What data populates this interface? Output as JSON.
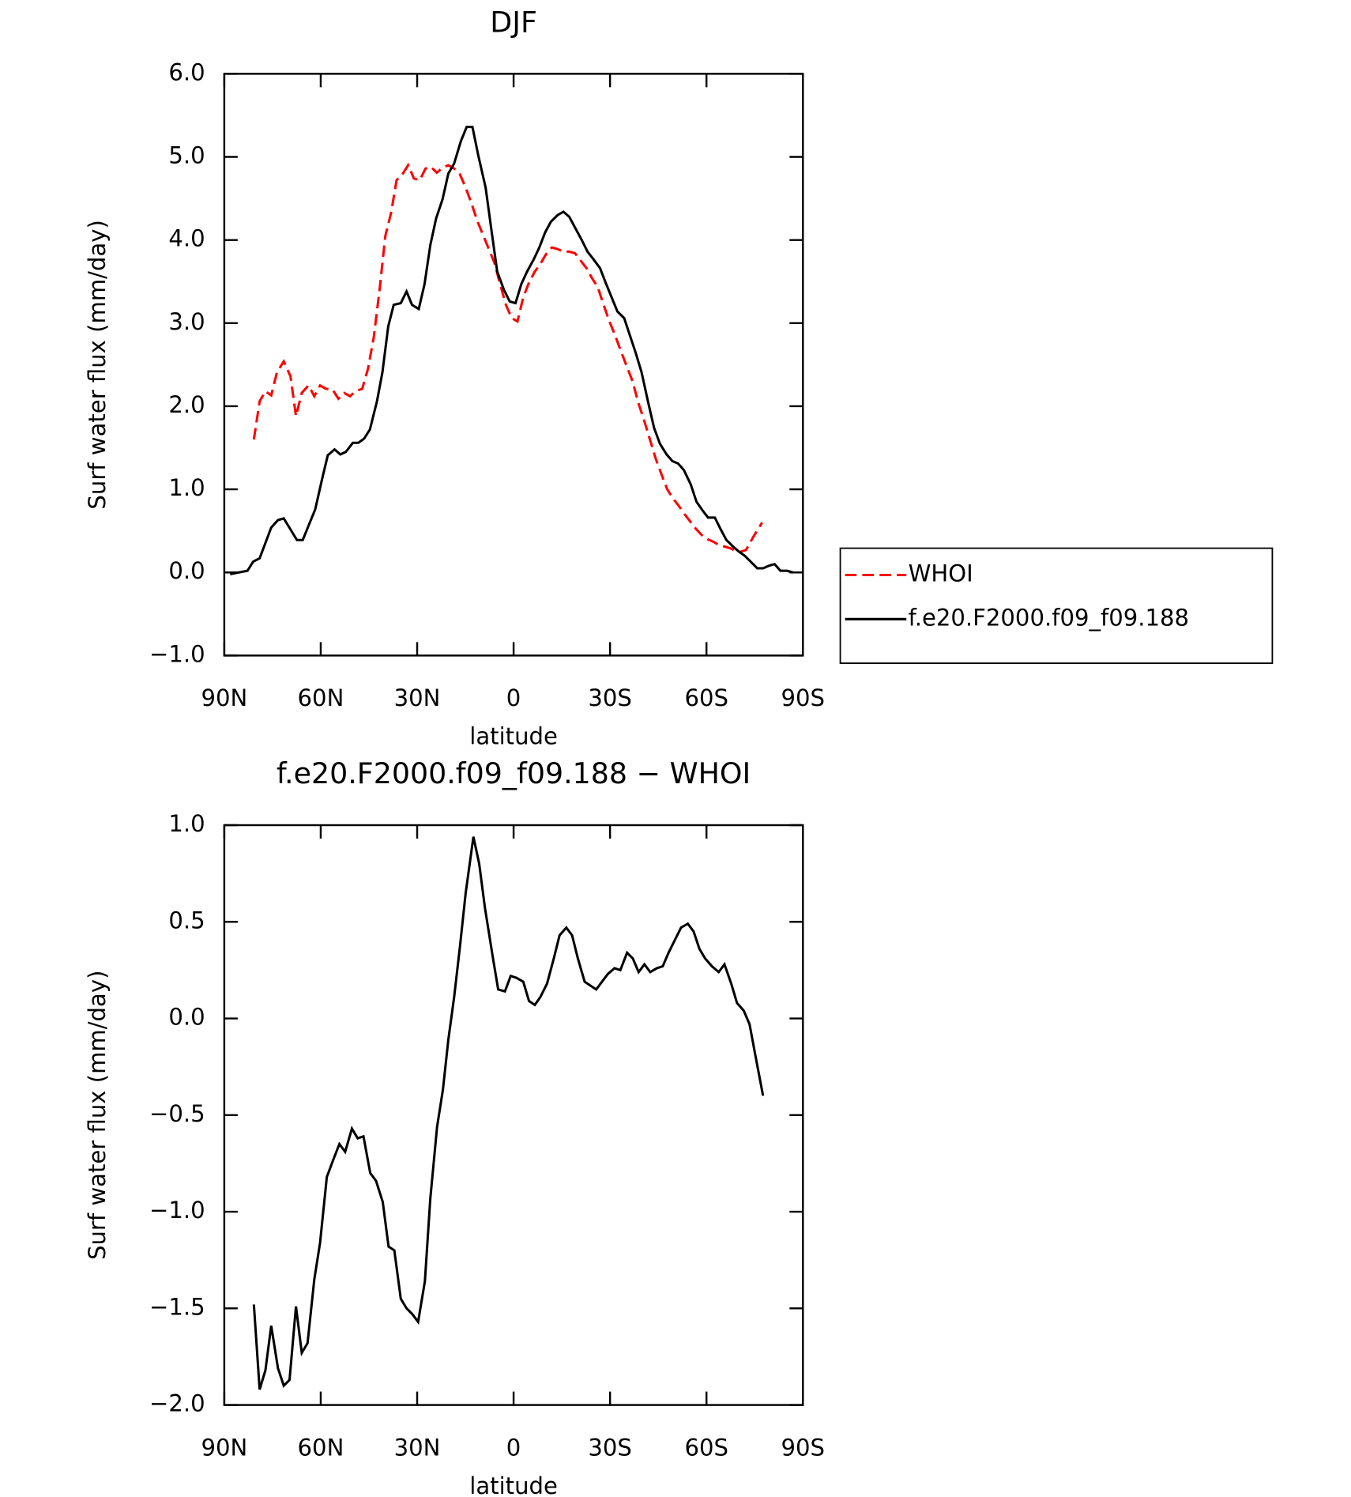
{
  "chart_data": [
    {
      "type": "line",
      "title": "DJF",
      "xlabel": "latitude",
      "ylabel": "Surf water flux (mm/day)",
      "xlim": [
        90,
        -90
      ],
      "xticks": [
        {
          "value": 90,
          "label": "90N"
        },
        {
          "value": 60,
          "label": "60N"
        },
        {
          "value": 30,
          "label": "30N"
        },
        0,
        {
          "value": -30,
          "label": "30S"
        },
        {
          "value": -60,
          "label": "60S"
        },
        {
          "value": -90,
          "label": "90S"
        }
      ],
      "ylim": [
        -1,
        6
      ],
      "yticks": [
        {
          "value": -1,
          "label": "−1.0"
        },
        {
          "value": 0,
          "label": "0.0"
        },
        {
          "value": 1,
          "label": "1.0"
        },
        {
          "value": 2,
          "label": "2.0"
        },
        {
          "value": 3,
          "label": "3.0"
        },
        {
          "value": 4,
          "label": "4.0"
        },
        {
          "value": 5,
          "label": "5.0"
        },
        {
          "value": 6,
          "label": "6.0"
        }
      ],
      "legend": "right",
      "series": [
        {
          "name": "WHOI",
          "color": "#ff0000",
          "style": "dashed",
          "x": [
            80.8,
            79,
            77.2,
            75.4,
            73.6,
            71.5,
            69.4,
            67.7,
            65.9,
            63.8,
            62,
            60.2,
            58.4,
            56.3,
            54.5,
            52.7,
            50.9,
            49.2,
            47.1,
            45.3,
            43.5,
            41.7,
            39.9,
            38.1,
            36.4,
            34.6,
            32.8,
            31,
            29.2,
            27.4,
            25.7,
            23.9,
            22.1,
            20.3,
            18.5,
            16.7,
            14.9,
            13.1,
            11.3,
            9.5,
            7.7,
            6,
            4.2,
            2.4,
            0.6,
            -1.2,
            -3,
            -4.8,
            -6.6,
            -8.3,
            -10.1,
            -11.9,
            -13.7,
            -15.5,
            -17.3,
            -19.1,
            -20.9,
            -22.7,
            -24.4,
            -26.2,
            -28,
            -29.8,
            -31.6,
            -33.4,
            -35.2,
            -37,
            -38.8,
            -40.6,
            -42.4,
            -44.2,
            -46,
            -47.8,
            -49.6,
            -51.4,
            -53.2,
            -55,
            -56.8,
            -58.5,
            -60.3,
            -62.1,
            -63.9,
            -65.7,
            -67.5,
            -69.9,
            -72.3,
            -74.6,
            -77.3
          ],
          "values": [
            1.6,
            2.06,
            2.18,
            2.13,
            2.41,
            2.54,
            2.36,
            1.88,
            2.16,
            2.25,
            2.12,
            2.25,
            2.21,
            2.2,
            2.09,
            2.16,
            2.12,
            2.18,
            2.21,
            2.45,
            2.83,
            3.4,
            4.05,
            4.33,
            4.72,
            4.79,
            4.9,
            4.74,
            4.72,
            4.86,
            4.88,
            4.81,
            4.87,
            4.9,
            4.86,
            4.79,
            4.63,
            4.44,
            4.23,
            4.06,
            3.89,
            3.73,
            3.47,
            3.22,
            3.06,
            3.02,
            3.31,
            3.49,
            3.62,
            3.71,
            3.83,
            3.91,
            3.89,
            3.86,
            3.86,
            3.84,
            3.75,
            3.66,
            3.54,
            3.43,
            3.22,
            3.02,
            2.85,
            2.66,
            2.48,
            2.3,
            2.04,
            1.83,
            1.6,
            1.37,
            1.18,
            1.0,
            0.89,
            0.8,
            0.7,
            0.61,
            0.52,
            0.45,
            0.4,
            0.37,
            0.33,
            0.31,
            0.29,
            0.24,
            0.27,
            0.43,
            0.6
          ]
        },
        {
          "name": "f.e20.F2000.f09_f09.188",
          "color": "#000000",
          "style": "solid",
          "x": [
            88.2,
            82.8,
            81,
            79,
            75.4,
            73.3,
            71.5,
            67.4,
            65.6,
            61.7,
            59.6,
            57.8,
            55.7,
            53.9,
            52.2,
            50,
            48.3,
            46.5,
            44.7,
            42.5,
            40.8,
            39,
            37.3,
            35.1,
            33.3,
            31.6,
            29.5,
            27.7,
            25.9,
            24.1,
            22.1,
            20.3,
            18.5,
            16.4,
            14.6,
            12.8,
            11,
            8.7,
            6.9,
            5.1,
            3,
            1.2,
            -0.6,
            -2.4,
            -4.2,
            -6.3,
            -8,
            -9.8,
            -11.6,
            -13.7,
            -15.5,
            -17.3,
            -19.1,
            -21.2,
            -23,
            -24.8,
            -26.9,
            -28.7,
            -30.5,
            -32.3,
            -34.4,
            -36.2,
            -38,
            -39.8,
            -41.9,
            -43.7,
            -45.5,
            -47.6,
            -49.4,
            -51.2,
            -53,
            -55.1,
            -56.9,
            -58.7,
            -60.5,
            -62.6,
            -64.4,
            -66.2,
            -68.3,
            -70.1,
            -71.9,
            -74,
            -75.8,
            -77.6,
            -79.4,
            -81.2,
            -83,
            -85.1,
            -86.9
          ],
          "values": [
            -0.02,
            0.02,
            0.13,
            0.17,
            0.54,
            0.63,
            0.65,
            0.39,
            0.39,
            0.76,
            1.12,
            1.41,
            1.48,
            1.42,
            1.45,
            1.56,
            1.56,
            1.61,
            1.72,
            2.06,
            2.41,
            2.96,
            3.22,
            3.24,
            3.38,
            3.22,
            3.17,
            3.47,
            3.94,
            4.26,
            4.49,
            4.8,
            4.92,
            5.19,
            5.36,
            5.36,
            5.02,
            4.63,
            4.12,
            3.62,
            3.4,
            3.26,
            3.24,
            3.47,
            3.62,
            3.77,
            3.91,
            4.09,
            4.22,
            4.3,
            4.34,
            4.28,
            4.15,
            4.0,
            3.86,
            3.77,
            3.66,
            3.48,
            3.31,
            3.14,
            3.06,
            2.85,
            2.64,
            2.41,
            2.04,
            1.74,
            1.55,
            1.42,
            1.34,
            1.31,
            1.23,
            1.06,
            0.85,
            0.75,
            0.66,
            0.66,
            0.52,
            0.39,
            0.31,
            0.25,
            0.2,
            0.12,
            0.05,
            0.05,
            0.08,
            0.1,
            0.02,
            0.02,
            0.0
          ]
        }
      ]
    },
    {
      "type": "line",
      "title": "f.e20.F2000.f09_f09.188 − WHOI",
      "xlabel": "latitude",
      "ylabel": "Surf water flux (mm/day)",
      "xlim": [
        90,
        -90
      ],
      "xticks": [
        {
          "value": 90,
          "label": "90N"
        },
        {
          "value": 60,
          "label": "60N"
        },
        {
          "value": 30,
          "label": "30N"
        },
        0,
        {
          "value": -30,
          "label": "30S"
        },
        {
          "value": -60,
          "label": "60S"
        },
        {
          "value": -90,
          "label": "90S"
        }
      ],
      "ylim": [
        -2,
        1
      ],
      "yticks": [
        {
          "value": -2,
          "label": "−2.0"
        },
        {
          "value": -1.5,
          "label": "−1.5"
        },
        {
          "value": -1,
          "label": "−1.0"
        },
        {
          "value": -0.5,
          "label": "−0.5"
        },
        {
          "value": 0,
          "label": "0.0"
        },
        0.5,
        {
          "value": 1,
          "label": "1.0"
        }
      ],
      "series": [
        {
          "color": "#000000",
          "style": "solid",
          "x": [
            80.8,
            79,
            77.2,
            75.4,
            73.3,
            71.5,
            69.7,
            67.7,
            65.9,
            64.1,
            62,
            60.2,
            58.1,
            56.3,
            54.2,
            52.4,
            50.3,
            48.5,
            46.7,
            44.6,
            42.8,
            40.7,
            38.9,
            37.1,
            35.1,
            33.3,
            31.5,
            29.7,
            27.6,
            25.9,
            23.8,
            22,
            20.3,
            18.5,
            16.7,
            14.9,
            12.5,
            10.7,
            8.9,
            6.5,
            4.8,
            2.7,
            0.9,
            -0.9,
            -3,
            -4.8,
            -6.6,
            -8.3,
            -10.4,
            -12.5,
            -14.3,
            -16.4,
            -18.2,
            -20,
            -22.1,
            -23.9,
            -25.7,
            -27.5,
            -29.3,
            -31.4,
            -33.2,
            -35.3,
            -37.1,
            -38.9,
            -40.7,
            -42.5,
            -44.6,
            -46.4,
            -48.2,
            -50,
            -52.1,
            -54.2,
            -56,
            -57.8,
            -59.6,
            -61.7,
            -63.8,
            -65.6,
            -67.7,
            -69.5,
            -71.6,
            -73.4,
            -75.2,
            -77.6
          ],
          "values": [
            -1.48,
            -1.92,
            -1.82,
            -1.59,
            -1.81,
            -1.9,
            -1.87,
            -1.49,
            -1.73,
            -1.68,
            -1.35,
            -1.16,
            -0.82,
            -0.74,
            -0.65,
            -0.69,
            -0.57,
            -0.62,
            -0.61,
            -0.8,
            -0.84,
            -0.95,
            -1.18,
            -1.2,
            -1.45,
            -1.5,
            -1.53,
            -1.57,
            -1.36,
            -0.93,
            -0.56,
            -0.37,
            -0.11,
            0.11,
            0.37,
            0.65,
            0.94,
            0.8,
            0.57,
            0.32,
            0.15,
            0.14,
            0.22,
            0.21,
            0.19,
            0.09,
            0.07,
            0.11,
            0.18,
            0.31,
            0.43,
            0.47,
            0.43,
            0.31,
            0.19,
            0.17,
            0.15,
            0.19,
            0.23,
            0.26,
            0.25,
            0.34,
            0.31,
            0.24,
            0.28,
            0.24,
            0.26,
            0.27,
            0.34,
            0.4,
            0.47,
            0.49,
            0.45,
            0.36,
            0.31,
            0.27,
            0.24,
            0.28,
            0.18,
            0.08,
            0.04,
            -0.03,
            -0.19,
            -0.4
          ]
        }
      ]
    }
  ]
}
